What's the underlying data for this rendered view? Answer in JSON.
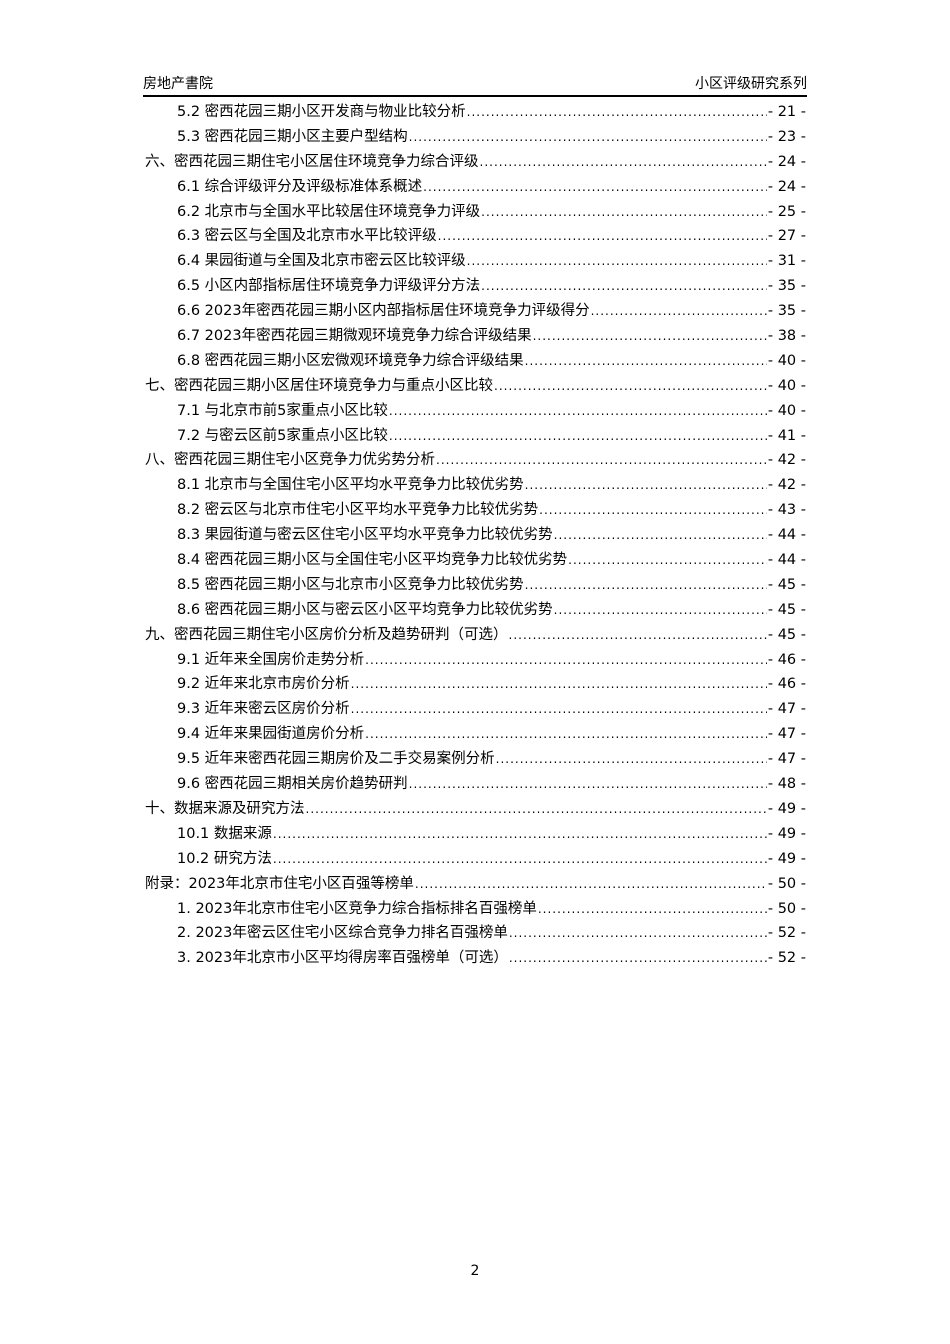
{
  "header": {
    "left": "房地产書院",
    "right": "小区评级研究系列"
  },
  "toc": [
    {
      "level": 2,
      "label": "5.2 密西花园三期小区开发商与物业比较分析",
      "page": "- 21 -"
    },
    {
      "level": 2,
      "label": "5.3 密西花园三期小区主要户型结构",
      "page": "- 23 -"
    },
    {
      "level": 1,
      "label": "六、密西花园三期住宅小区居住环境竞争力综合评级",
      "page": "- 24 -"
    },
    {
      "level": 2,
      "label": "6.1 综合评级评分及评级标准体系概述",
      "page": "- 24 -"
    },
    {
      "level": 2,
      "label": "6.2 北京市与全国水平比较居住环境竞争力评级",
      "page": "- 25 -"
    },
    {
      "level": 2,
      "label": "6.3 密云区与全国及北京市水平比较评级",
      "page": "- 27 -"
    },
    {
      "level": 2,
      "label": "6.4 果园街道与全国及北京市密云区比较评级",
      "page": "- 31 -"
    },
    {
      "level": 2,
      "label": "6.5 小区内部指标居住环境竞争力评级评分方法",
      "page": "- 35 -"
    },
    {
      "level": 2,
      "label": "6.6 2023年密西花园三期小区内部指标居住环境竞争力评级得分",
      "page": "- 35 -"
    },
    {
      "level": 2,
      "label": "6.7 2023年密西花园三期微观环境竞争力综合评级结果",
      "page": "- 38 -"
    },
    {
      "level": 2,
      "label": "6.8 密西花园三期小区宏微观环境竞争力综合评级结果",
      "page": "- 40 -"
    },
    {
      "level": 1,
      "label": "七、密西花园三期小区居住环境竞争力与重点小区比较",
      "page": "- 40 -"
    },
    {
      "level": 2,
      "label": "7.1 与北京市前5家重点小区比较",
      "page": "- 40 -"
    },
    {
      "level": 2,
      "label": "7.2 与密云区前5家重点小区比较",
      "page": "- 41 -"
    },
    {
      "level": 1,
      "label": "八、密西花园三期住宅小区竞争力优劣势分析",
      "page": "- 42 -"
    },
    {
      "level": 2,
      "label": "8.1 北京市与全国住宅小区平均水平竞争力比较优劣势",
      "page": "- 42 -"
    },
    {
      "level": 2,
      "label": "8.2 密云区与北京市住宅小区平均水平竞争力比较优劣势",
      "page": "- 43 -"
    },
    {
      "level": 2,
      "label": "8.3 果园街道与密云区住宅小区平均水平竞争力比较优劣势",
      "page": "- 44 -"
    },
    {
      "level": 2,
      "label": "8.4 密西花园三期小区与全国住宅小区平均竞争力比较优劣势",
      "page": "- 44 -"
    },
    {
      "level": 2,
      "label": "8.5 密西花园三期小区与北京市小区竞争力比较优劣势",
      "page": "- 45 -"
    },
    {
      "level": 2,
      "label": "8.6 密西花园三期小区与密云区小区平均竞争力比较优劣势",
      "page": "- 45 -"
    },
    {
      "level": 1,
      "label": "九、密西花园三期住宅小区房价分析及趋势研判（可选）",
      "page": "- 45 -"
    },
    {
      "level": 2,
      "label": "9.1 近年来全国房价走势分析",
      "page": "- 46 -"
    },
    {
      "level": 2,
      "label": "9.2 近年来北京市房价分析",
      "page": "- 46 -"
    },
    {
      "level": 2,
      "label": "9.3 近年来密云区房价分析",
      "page": "- 47 -"
    },
    {
      "level": 2,
      "label": "9.4 近年来果园街道房价分析",
      "page": "- 47 -"
    },
    {
      "level": 2,
      "label": "9.5 近年来密西花园三期房价及二手交易案例分析",
      "page": "- 47 -"
    },
    {
      "level": 2,
      "label": "9.6 密西花园三期相关房价趋势研判",
      "page": "- 48 -"
    },
    {
      "level": 1,
      "label": "十、数据来源及研究方法",
      "page": "- 49 -"
    },
    {
      "level": 2,
      "label": "10.1 数据来源",
      "page": "- 49 -"
    },
    {
      "level": 2,
      "label": "10.2 研究方法",
      "page": "- 49 -"
    },
    {
      "level": 1,
      "label": "附录：2023年北京市住宅小区百强等榜单",
      "page": "- 50 -"
    },
    {
      "level": 2,
      "label": "1. 2023年北京市住宅小区竞争力综合指标排名百强榜单",
      "page": "- 50 -"
    },
    {
      "level": 2,
      "label": "2. 2023年密云区住宅小区综合竞争力排名百强榜单",
      "page": "- 52 -"
    },
    {
      "level": 2,
      "label": "3. 2023年北京市小区平均得房率百强榜单（可选）",
      "page": "- 52 -"
    }
  ],
  "page_number": "2"
}
